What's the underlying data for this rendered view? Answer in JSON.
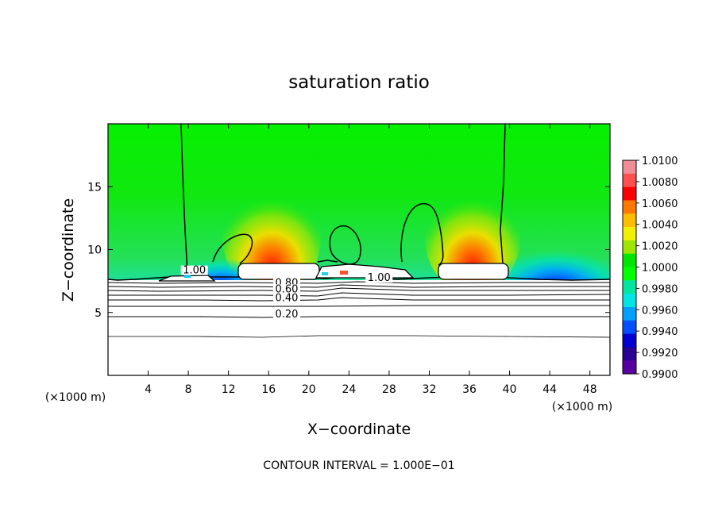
{
  "chart_data": {
    "type": "heatmap",
    "title": "saturation ratio",
    "xlabel": "X−coordinate",
    "ylabel": "Z−coordinate",
    "x_unit_left": "(×1000 m)",
    "x_unit_right": "(×1000 m)",
    "footer": "CONTOUR INTERVAL = 1.000E−01",
    "xlim": [
      0,
      50
    ],
    "ylim": [
      0,
      20
    ],
    "x_ticks": [
      4,
      8,
      12,
      16,
      20,
      24,
      28,
      32,
      36,
      40,
      44,
      48
    ],
    "x_tick_labels": [
      "4",
      "8",
      "12",
      "16",
      "20",
      "24",
      "28",
      "32",
      "36",
      "40",
      "44",
      "48"
    ],
    "y_ticks": [
      5,
      10,
      15
    ],
    "y_tick_labels": [
      "5",
      "10",
      "15"
    ],
    "colorbar": {
      "min": 0.99,
      "max": 1.01,
      "labels": [
        "1.0100",
        "1.0080",
        "1.0060",
        "1.0040",
        "1.0020",
        "1.0000",
        "0.9980",
        "0.9960",
        "0.9940",
        "0.9920",
        "0.9900"
      ],
      "colors": [
        "#f08c96",
        "#ff5050",
        "#ff0000",
        "#ff7800",
        "#ffbe00",
        "#f0f000",
        "#9ce600",
        "#00e600",
        "#00ff00",
        "#00e6a0",
        "#00e6e6",
        "#00a0ff",
        "#0050ff",
        "#0000d2",
        "#280096",
        "#5a00a0"
      ]
    },
    "contour_labels": [
      {
        "text": "1.00",
        "x": 8.6,
        "z": 8.1
      },
      {
        "text": "0.80",
        "x": 17.8,
        "z": 7.1
      },
      {
        "text": "0.60",
        "x": 17.8,
        "z": 6.6
      },
      {
        "text": "0.40",
        "x": 17.8,
        "z": 5.9
      },
      {
        "text": "0.20",
        "x": 17.8,
        "z": 4.6
      },
      {
        "text": "1.00",
        "x": 27.0,
        "z": 7.5
      }
    ],
    "features": {
      "ground_level_z": 7.6,
      "hotspot_centers_x": [
        16.5,
        36.5
      ],
      "coldspot_centers_x": [
        11.0,
        44.5
      ]
    }
  }
}
